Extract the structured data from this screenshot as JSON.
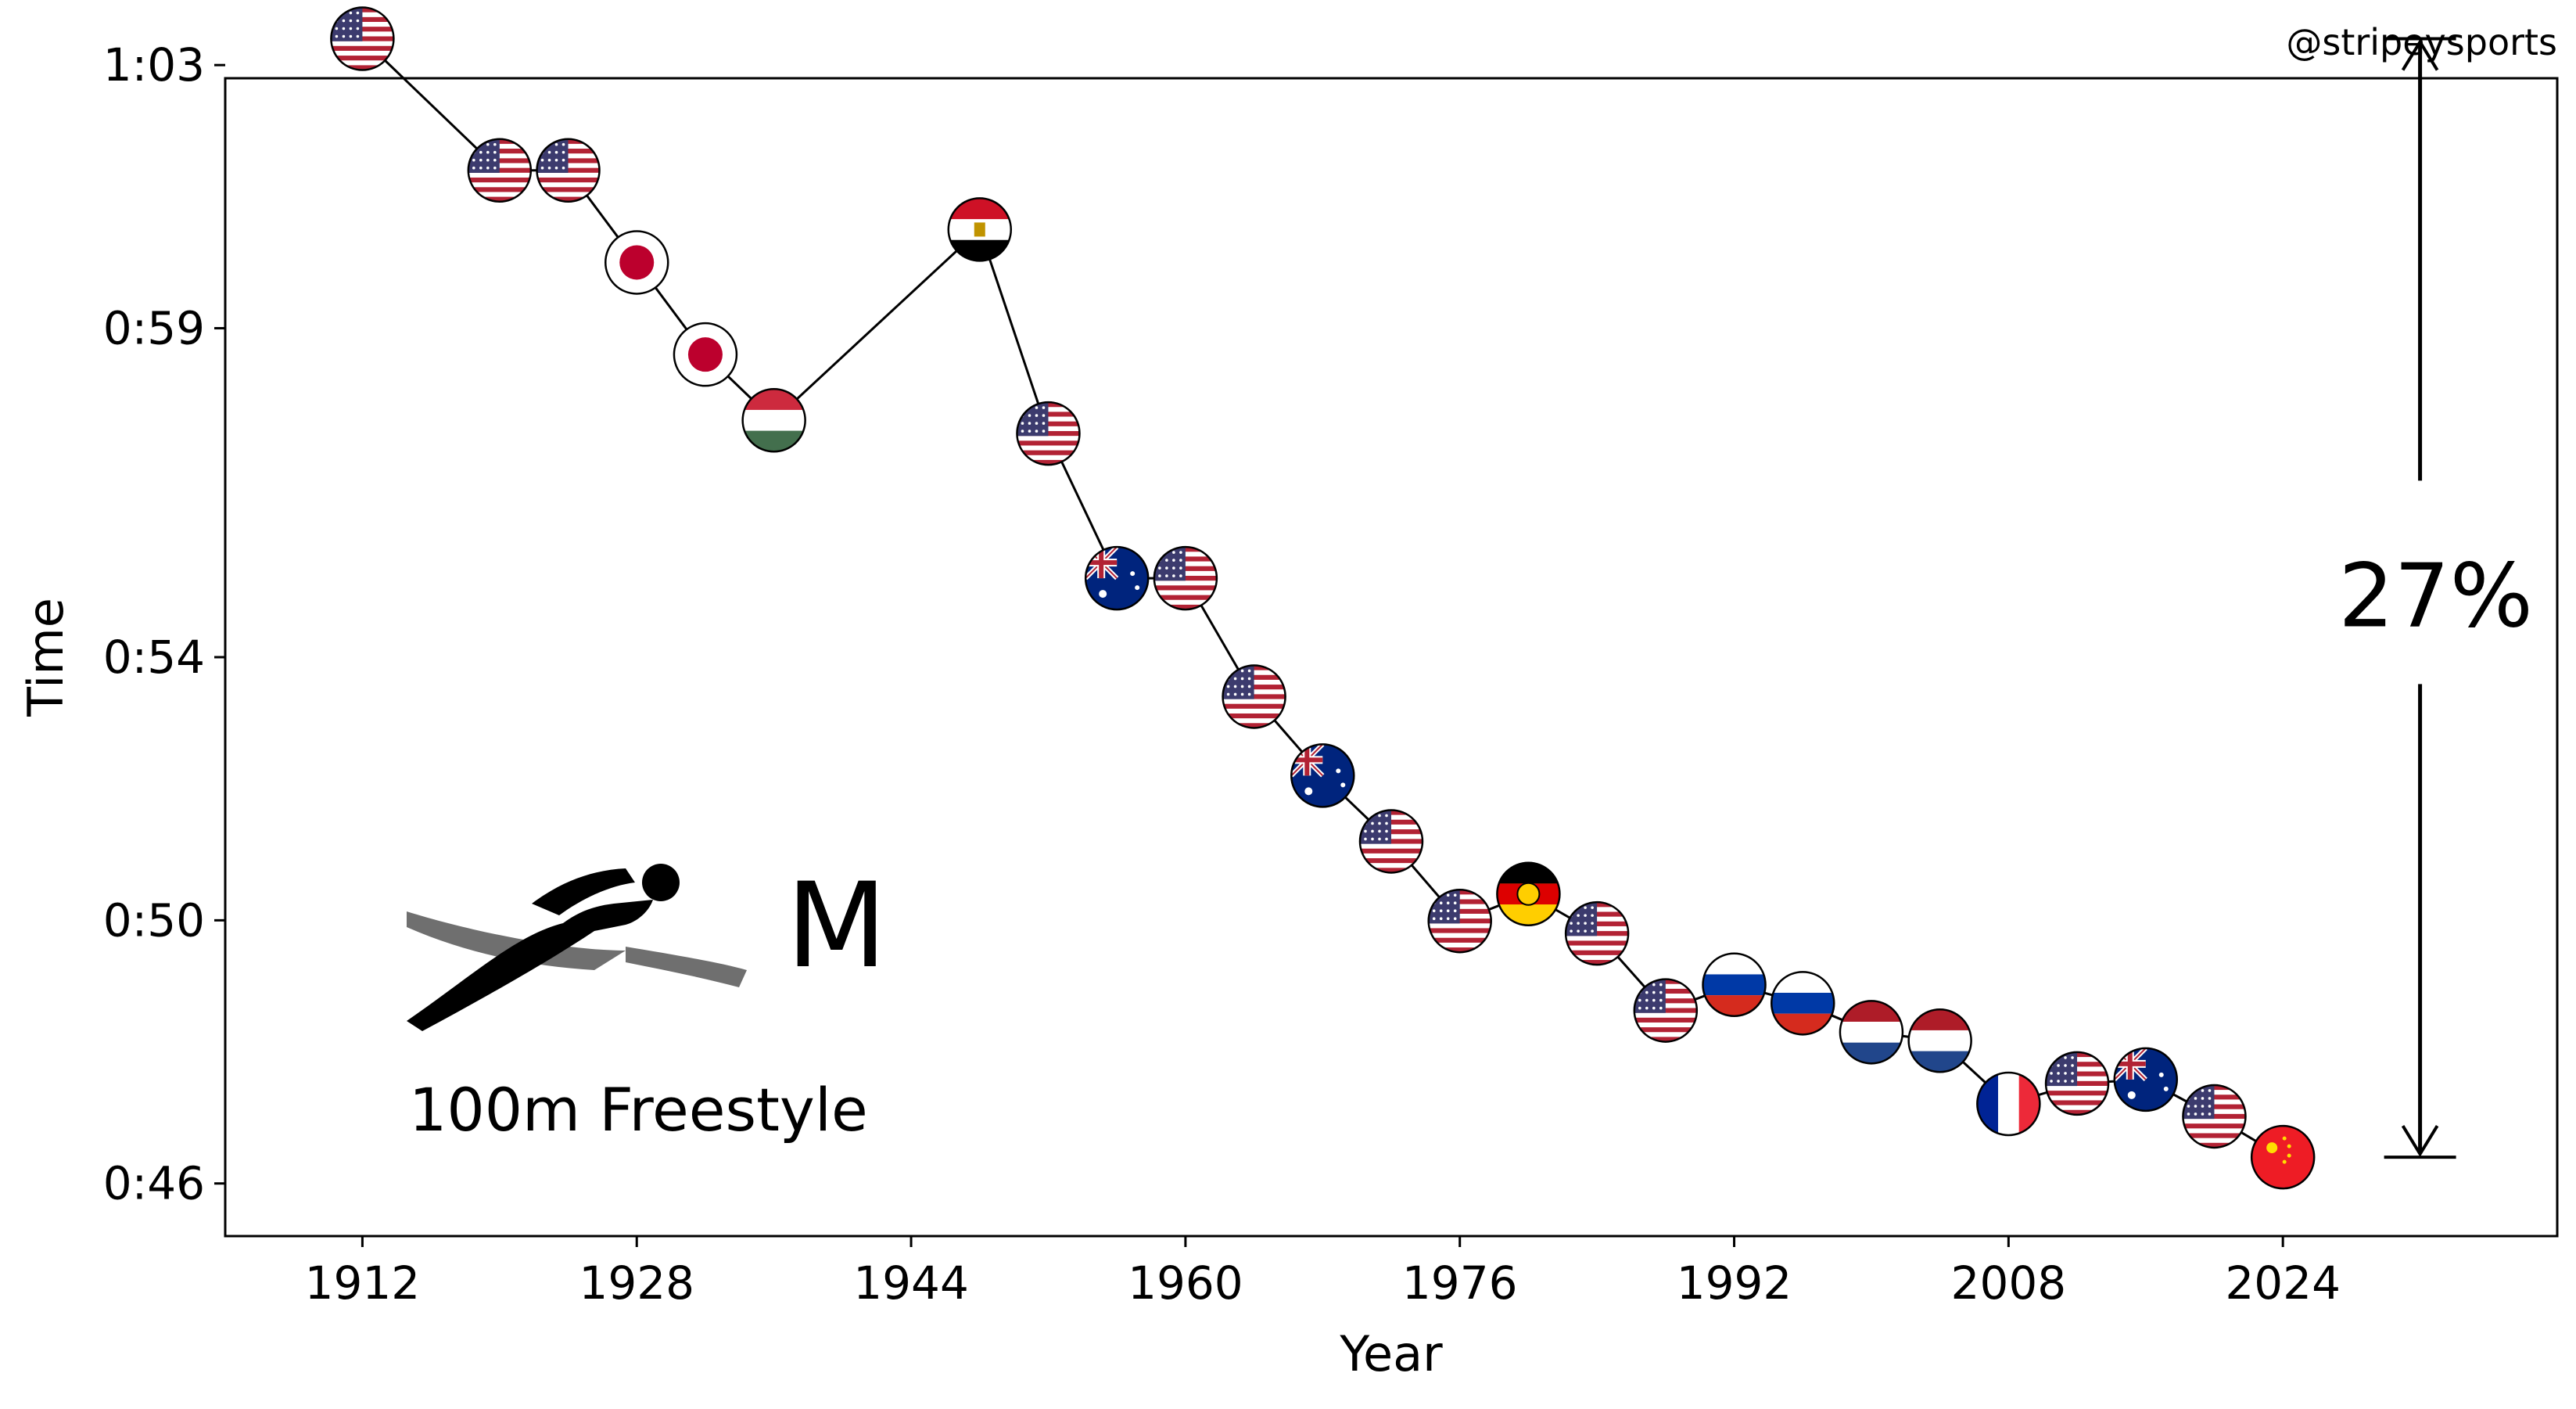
{
  "credit": "@stripeysports",
  "event_name": "100m Freestyle",
  "gender": "M",
  "improvement_label": "27%",
  "colors": {
    "usa_red": "#b22234",
    "usa_blue": "#3c3b6e",
    "japan_red": "#bc002d",
    "hungary_green": "#436f4d",
    "hungary_red": "#cd2a3e",
    "australia_blue": "#00247d",
    "gdr_gold": "#ffce00",
    "gdr_red": "#dd0000",
    "russia_blue": "#0039a6",
    "russia_red": "#d52b1e",
    "netherlands_red": "#ae1c28",
    "netherlands_blue": "#21468b",
    "france_blue": "#002395",
    "france_red": "#ed2939",
    "china_red": "#ee1c25",
    "china_gold": "#ffde00",
    "egypt_red": "#ce1126"
  },
  "chart_data": {
    "type": "line",
    "xlabel": "Year",
    "ylabel": "Time",
    "xlim": [
      1904,
      2040
    ],
    "ylim": [
      45.2,
      62.8
    ],
    "xticks": [
      1912,
      1928,
      1944,
      1960,
      1976,
      1992,
      2008,
      2024
    ],
    "xtick_labels": [
      "1912",
      "1928",
      "1944",
      "1960",
      "1976",
      "1992",
      "2008",
      "2024"
    ],
    "yticks": [
      46,
      50,
      54,
      59,
      63
    ],
    "ytick_labels": [
      "0:46",
      "0:50",
      "0:54",
      "0:59",
      "1:03"
    ],
    "grid": false,
    "series": [
      {
        "points": [
          {
            "year": 1912,
            "seconds": 63.4,
            "country": "USA"
          },
          {
            "year": 1920,
            "seconds": 61.4,
            "country": "USA"
          },
          {
            "year": 1924,
            "seconds": 61.4,
            "country": "USA"
          },
          {
            "year": 1928,
            "seconds": 60.0,
            "country": "Japan"
          },
          {
            "year": 1932,
            "seconds": 58.6,
            "country": "Japan"
          },
          {
            "year": 1936,
            "seconds": 57.6,
            "country": "Hungary"
          },
          {
            "year": 1948,
            "seconds": 60.5,
            "country": "Egypt"
          },
          {
            "year": 1952,
            "seconds": 57.4,
            "country": "USA"
          },
          {
            "year": 1956,
            "seconds": 55.2,
            "country": "Australia"
          },
          {
            "year": 1960,
            "seconds": 55.2,
            "country": "USA"
          },
          {
            "year": 1964,
            "seconds": 53.4,
            "country": "USA"
          },
          {
            "year": 1968,
            "seconds": 52.2,
            "country": "Australia"
          },
          {
            "year": 1972,
            "seconds": 51.2,
            "country": "USA"
          },
          {
            "year": 1976,
            "seconds": 49.99,
            "country": "USA"
          },
          {
            "year": 1980,
            "seconds": 50.4,
            "country": "East Germany"
          },
          {
            "year": 1984,
            "seconds": 49.8,
            "country": "USA"
          },
          {
            "year": 1988,
            "seconds": 48.63,
            "country": "USA"
          },
          {
            "year": 1992,
            "seconds": 49.02,
            "country": "Russia"
          },
          {
            "year": 1996,
            "seconds": 48.74,
            "country": "Russia"
          },
          {
            "year": 2000,
            "seconds": 48.3,
            "country": "Netherlands"
          },
          {
            "year": 2004,
            "seconds": 48.17,
            "country": "Netherlands"
          },
          {
            "year": 2008,
            "seconds": 47.21,
            "country": "France"
          },
          {
            "year": 2012,
            "seconds": 47.52,
            "country": "USA"
          },
          {
            "year": 2016,
            "seconds": 47.58,
            "country": "Australia"
          },
          {
            "year": 2020,
            "seconds": 47.02,
            "country": "USA"
          },
          {
            "year": 2024,
            "seconds": 46.4,
            "country": "China"
          }
        ]
      }
    ],
    "annotation": {
      "text": "27%",
      "from": 63.4,
      "to": 46.4,
      "year_position": 2032
    }
  }
}
